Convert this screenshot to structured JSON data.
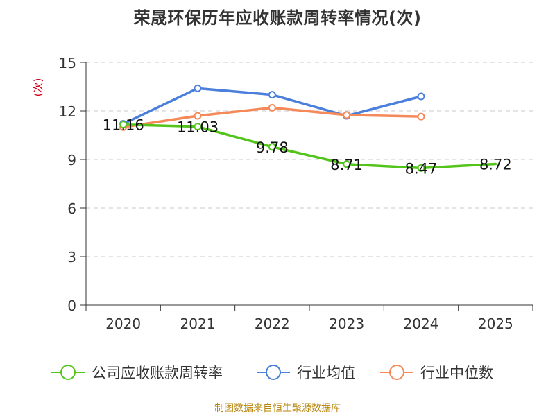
{
  "chart_data": {
    "type": "line",
    "title": "荣晟环保历年应收账款周转率情况(次)",
    "ylabel": "(次)",
    "xlabel": "",
    "categories": [
      "2020",
      "2021",
      "2022",
      "2023",
      "2024",
      "2025"
    ],
    "ylim": [
      0,
      15
    ],
    "yticks": [
      0,
      3,
      6,
      9,
      12,
      15
    ],
    "grid": true,
    "legend_position": "bottom",
    "series": [
      {
        "name": "公司应收账款周转率",
        "color": "#52c41a",
        "values": [
          11.16,
          11.03,
          9.78,
          8.71,
          8.47,
          8.72
        ],
        "show_labels": true,
        "markers": [
          true,
          true,
          true,
          true,
          true,
          false
        ]
      },
      {
        "name": "行业均值",
        "color": "#4a7fdc",
        "values": [
          11.2,
          13.4,
          13.0,
          11.7,
          12.9,
          null
        ],
        "show_labels": false,
        "markers": [
          true,
          true,
          true,
          true,
          true,
          false
        ]
      },
      {
        "name": "行业中位数",
        "color": "#f5895a",
        "values": [
          11.0,
          11.7,
          12.2,
          11.75,
          11.65,
          null
        ],
        "show_labels": false,
        "markers": [
          true,
          true,
          true,
          true,
          true,
          false
        ]
      }
    ],
    "data_labels": [
      "11.16",
      "11.03",
      "9.78",
      "8.71",
      "8.47",
      "8.72"
    ]
  },
  "footer": {
    "source": "制图数据来自恒生聚源数据库"
  }
}
